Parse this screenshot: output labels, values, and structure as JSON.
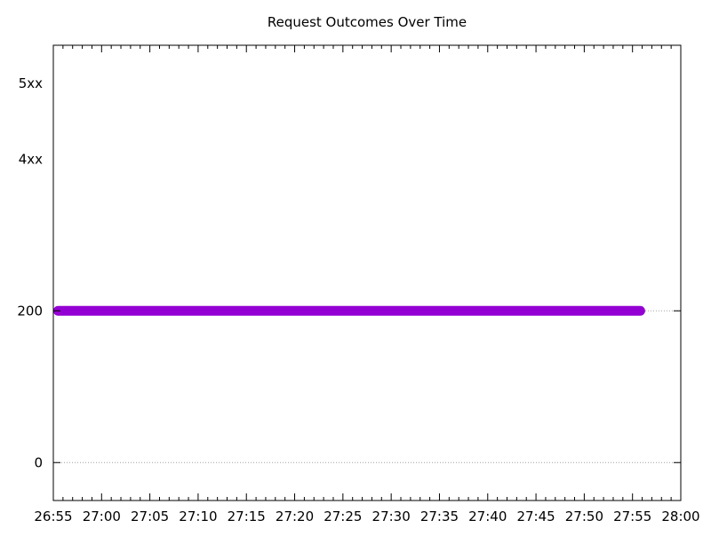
{
  "chart_data": {
    "type": "scatter",
    "title": "Request Outcomes Over Time",
    "xlabel": "",
    "ylabel": "",
    "x_tick_labels": [
      "26:55",
      "27:00",
      "27:05",
      "27:10",
      "27:15",
      "27:20",
      "27:25",
      "27:30",
      "27:35",
      "27:40",
      "27:45",
      "27:50",
      "27:55",
      "28:00"
    ],
    "x_tick_values": [
      0,
      5,
      10,
      15,
      20,
      25,
      30,
      35,
      40,
      45,
      50,
      55,
      60,
      65
    ],
    "x_minor_step": 1,
    "xlim": [
      0,
      65
    ],
    "y_ticks": [
      {
        "label": "0",
        "value": 0,
        "gridline": true
      },
      {
        "label": "200",
        "value": 200,
        "gridline": true
      },
      {
        "label": "4xx",
        "value": 400,
        "gridline": false
      },
      {
        "label": "5xx",
        "value": 500,
        "gridline": false
      }
    ],
    "ylim": [
      -50,
      550
    ],
    "grid": "horizontal at 0 and 200",
    "legend": "none",
    "series": [
      {
        "x_range": [
          0.5,
          60.8
        ],
        "y": 200,
        "color": "#9400d3"
      }
    ]
  }
}
